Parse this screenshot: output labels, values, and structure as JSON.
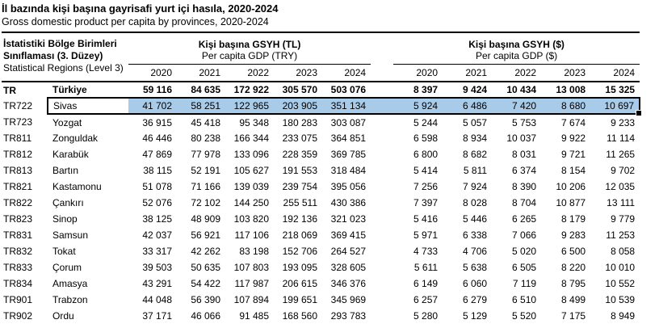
{
  "title": "İl bazında kişi başına gayrisafi yurt içi hasıla, 2020-2024",
  "subtitle": "Gross domestic product per capita by provinces, 2020-2024",
  "colors": {
    "selection_highlight": "#A8CBEA",
    "selection_border": "#000000"
  },
  "table": {
    "region_header": {
      "line1": "İstatistiki Bölge Birimleri",
      "line2": "Sınıflaması (3. Düzey)",
      "line3": "Statistical Regions (Level 3)"
    },
    "groups": [
      {
        "title": "Kişi başına GSYH (TL)",
        "subtitle": "Per capita GDP (TRY)"
      },
      {
        "title": "Kişi başına GSYH ($)",
        "subtitle": "Per capita GDP ($)"
      }
    ],
    "years": [
      "2020",
      "2021",
      "2022",
      "2023",
      "2024"
    ],
    "rows": [
      {
        "code": "TR",
        "name": "Türkiye",
        "bold": true,
        "selected": false,
        "tl": [
          "59 116",
          "84 635",
          "172 922",
          "305 570",
          "503 076"
        ],
        "usd": [
          "8 397",
          "9 424",
          "10 434",
          "13 008",
          "15 325"
        ]
      },
      {
        "code": "TR722",
        "name": "Sivas",
        "bold": false,
        "selected": true,
        "tl": [
          "41 702",
          "58 251",
          "122 965",
          "203 905",
          "351 134"
        ],
        "usd": [
          "5 924",
          "6 486",
          "7 420",
          "8 680",
          "10 697"
        ]
      },
      {
        "code": "TR723",
        "name": "Yozgat",
        "bold": false,
        "selected": false,
        "tl": [
          "36 915",
          "45 418",
          "95 348",
          "180 283",
          "303 087"
        ],
        "usd": [
          "5 244",
          "5 057",
          "5 753",
          "7 674",
          "9 233"
        ]
      },
      {
        "code": "TR811",
        "name": "Zonguldak",
        "bold": false,
        "selected": false,
        "tl": [
          "46 446",
          "80 238",
          "166 344",
          "233 075",
          "364 851"
        ],
        "usd": [
          "6 598",
          "8 934",
          "10 037",
          "9 922",
          "11 114"
        ]
      },
      {
        "code": "TR812",
        "name": "Karabük",
        "bold": false,
        "selected": false,
        "tl": [
          "47 869",
          "77 978",
          "133 096",
          "228 359",
          "369 785"
        ],
        "usd": [
          "6 800",
          "8 682",
          "8 031",
          "9 721",
          "11 265"
        ]
      },
      {
        "code": "TR813",
        "name": "Bartın",
        "bold": false,
        "selected": false,
        "tl": [
          "38 115",
          "52 191",
          "105 627",
          "191 553",
          "318 484"
        ],
        "usd": [
          "5 414",
          "5 811",
          "6 374",
          "8 154",
          "9 702"
        ]
      },
      {
        "code": "TR821",
        "name": "Kastamonu",
        "bold": false,
        "selected": false,
        "tl": [
          "51 078",
          "71 166",
          "139 039",
          "239 754",
          "395 056"
        ],
        "usd": [
          "7 256",
          "7 924",
          "8 390",
          "10 206",
          "12 035"
        ]
      },
      {
        "code": "TR822",
        "name": "Çankırı",
        "bold": false,
        "selected": false,
        "tl": [
          "52 076",
          "72 102",
          "144 250",
          "255 511",
          "430 386"
        ],
        "usd": [
          "7 397",
          "8 028",
          "8 704",
          "10 877",
          "13 111"
        ]
      },
      {
        "code": "TR823",
        "name": "Sinop",
        "bold": false,
        "selected": false,
        "tl": [
          "38 125",
          "48 909",
          "103 820",
          "192 136",
          "321 023"
        ],
        "usd": [
          "5 416",
          "5 446",
          "6 265",
          "8 179",
          "9 779"
        ]
      },
      {
        "code": "TR831",
        "name": "Samsun",
        "bold": false,
        "selected": false,
        "tl": [
          "42 037",
          "56 921",
          "117 106",
          "218 069",
          "369 415"
        ],
        "usd": [
          "5 971",
          "6 338",
          "7 066",
          "9 283",
          "11 253"
        ]
      },
      {
        "code": "TR832",
        "name": "Tokat",
        "bold": false,
        "selected": false,
        "tl": [
          "33 317",
          "42 262",
          "83 198",
          "152 706",
          "264 527"
        ],
        "usd": [
          "4 733",
          "4 706",
          "5 020",
          "6 500",
          "8 058"
        ]
      },
      {
        "code": "TR833",
        "name": "Çorum",
        "bold": false,
        "selected": false,
        "tl": [
          "39 503",
          "50 635",
          "107 803",
          "193 095",
          "328 605"
        ],
        "usd": [
          "5 611",
          "5 638",
          "6 505",
          "8 220",
          "10 010"
        ]
      },
      {
        "code": "TR834",
        "name": "Amasya",
        "bold": false,
        "selected": false,
        "tl": [
          "43 291",
          "54 422",
          "117 987",
          "206 615",
          "346 376"
        ],
        "usd": [
          "6 149",
          "6 060",
          "7 119",
          "8 795",
          "10 552"
        ]
      },
      {
        "code": "TR901",
        "name": "Trabzon",
        "bold": false,
        "selected": false,
        "tl": [
          "44 048",
          "56 390",
          "107 894",
          "199 651",
          "345 969"
        ],
        "usd": [
          "6 257",
          "6 279",
          "6 510",
          "8 499",
          "10 539"
        ]
      },
      {
        "code": "TR902",
        "name": "Ordu",
        "bold": false,
        "selected": false,
        "tl": [
          "37 171",
          "46 066",
          "91 485",
          "168 560",
          "293 783"
        ],
        "usd": [
          "5 280",
          "5 129",
          "5 520",
          "7 175",
          "8 949"
        ]
      }
    ]
  }
}
